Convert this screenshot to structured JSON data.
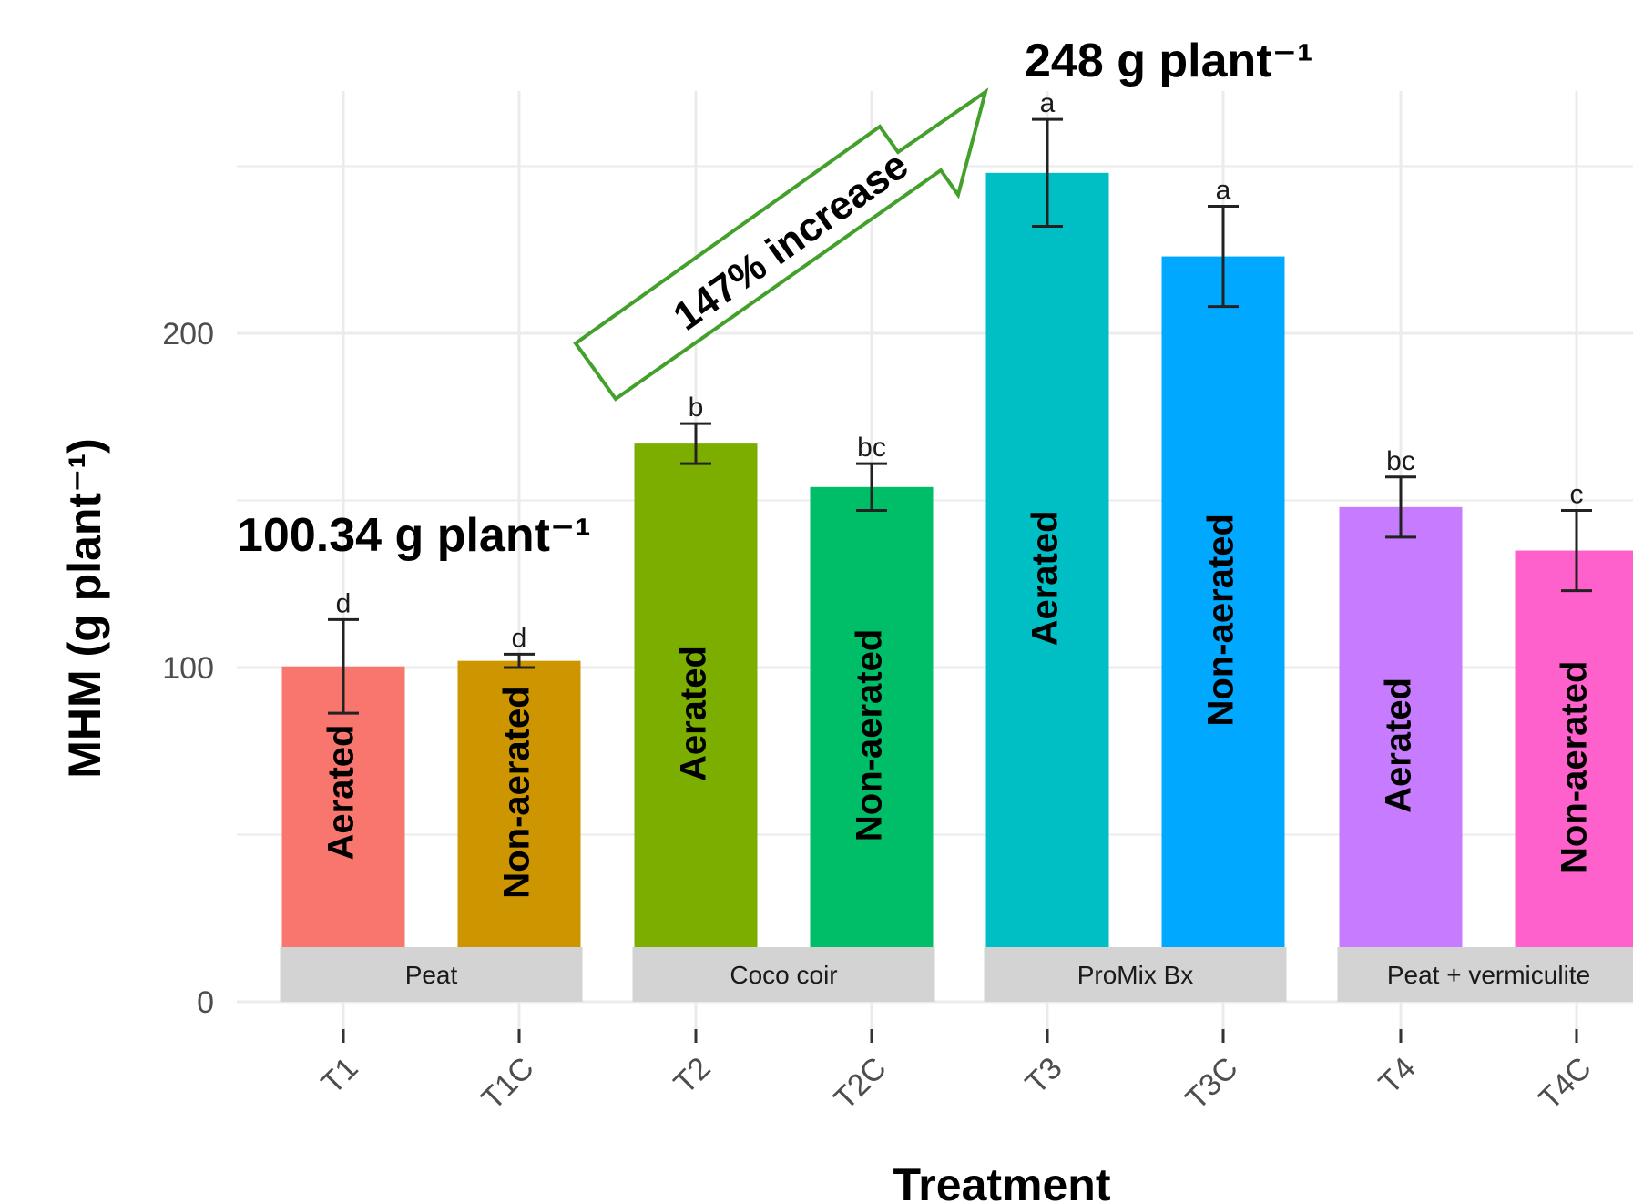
{
  "chart_data": {
    "type": "bar",
    "xlabel": "Treatment",
    "ylabel": "MHM (g plant⁻¹)",
    "ylim": [
      0,
      280
    ],
    "yticks": [
      0,
      100,
      200
    ],
    "grid": true,
    "categories": [
      "T1",
      "T1C",
      "T2",
      "T2C",
      "T3",
      "T3C",
      "T4",
      "T4C"
    ],
    "values": [
      100.34,
      102,
      167,
      154,
      248,
      223,
      148,
      135
    ],
    "errors": [
      14,
      2,
      6,
      7,
      16,
      15,
      9,
      12
    ],
    "significance": [
      "d",
      "d",
      "b",
      "bc",
      "a",
      "a",
      "bc",
      "c"
    ],
    "bar_labels": [
      "Aerated",
      "Non-aerated",
      "Aerated",
      "Non-aerated",
      "Aerated",
      "Non-aerated",
      "Aerated",
      "Non-aerated"
    ],
    "colors": [
      "#F8766D",
      "#CD9600",
      "#7CAE00",
      "#00BE67",
      "#00BFC4",
      "#00A9FF",
      "#C77CFF",
      "#FF61CC"
    ],
    "groups": [
      {
        "label": "Peat",
        "bars": [
          0,
          1
        ]
      },
      {
        "label": "Coco coir",
        "bars": [
          2,
          3
        ]
      },
      {
        "label": "ProMix Bx",
        "bars": [
          4,
          5
        ]
      },
      {
        "label": "Peat + vermiculite",
        "bars": [
          6,
          7
        ]
      }
    ],
    "annotations": {
      "low_value": "100.34 g plant⁻¹",
      "high_value": "248 g plant⁻¹",
      "increase": "147% increase"
    }
  }
}
